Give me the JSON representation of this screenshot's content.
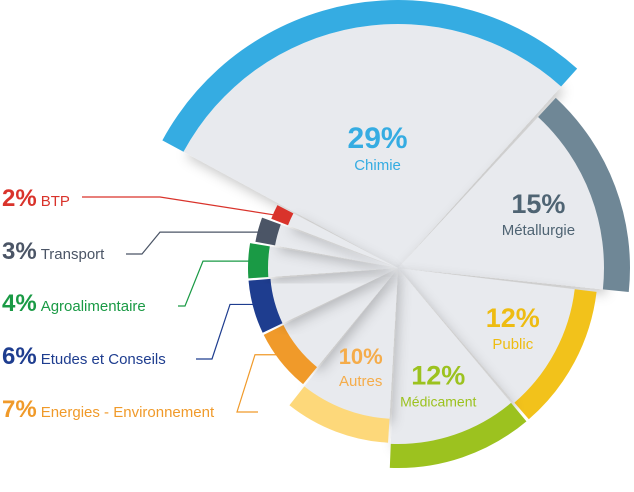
{
  "chart_data": {
    "type": "pie",
    "title": "",
    "slices": [
      {
        "label": "Chimie",
        "value": 29,
        "value_label": "29%",
        "color": "#35ace2"
      },
      {
        "label": "Métallurgie",
        "value": 15,
        "value_label": "15%",
        "color": "#6f8796"
      },
      {
        "label": "Public",
        "value": 12,
        "value_label": "12%",
        "color": "#f2c21b"
      },
      {
        "label": "Médicament",
        "value": 12,
        "value_label": "12%",
        "color": "#9cc21f"
      },
      {
        "label": "Autres",
        "value": 10,
        "value_label": "10%",
        "color": "#fdd87a"
      },
      {
        "label": "Energies - Environnement",
        "value": 7,
        "value_label": "7%",
        "color": "#f09a2a"
      },
      {
        "label": "Etudes et Conseils",
        "value": 6,
        "value_label": "6%",
        "color": "#1e3d8f"
      },
      {
        "label": "Agroalimentaire",
        "value": 4,
        "value_label": "4%",
        "color": "#1a9a45"
      },
      {
        "label": "Transport",
        "value": 3,
        "value_label": "3%",
        "color": "#4b5566"
      },
      {
        "label": "BTP",
        "value": 2,
        "value_label": "2%",
        "color": "#d9332b"
      }
    ],
    "inner_label_color": "#e8eaee",
    "legend_placement": "left"
  }
}
